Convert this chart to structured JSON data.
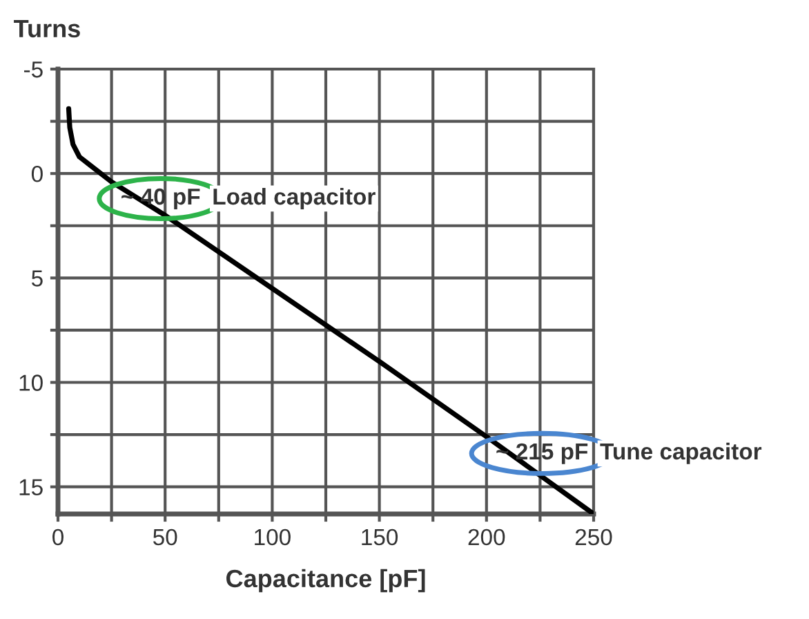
{
  "chart_data": {
    "type": "line",
    "ylabel": "Turns",
    "xlabel": "Capacitance [pF]",
    "x": [
      5,
      5.5,
      7,
      10,
      15,
      25,
      50,
      100,
      150,
      200,
      250
    ],
    "series": [
      {
        "color": "#000000",
        "values": [
          -3.1,
          -2.2,
          -1.4,
          -0.8,
          -0.4,
          0.4,
          2.0,
          5.5,
          9.0,
          12.6,
          16.3
        ]
      }
    ],
    "xlim": [
      0,
      250
    ],
    "ylim": [
      16.3,
      -5
    ],
    "xticks": [
      0,
      {
        "value": 25,
        "label": null
      },
      50,
      {
        "value": 75,
        "label": null
      },
      100,
      {
        "value": 125,
        "label": null
      },
      150,
      {
        "value": 175,
        "label": null
      },
      200,
      {
        "value": 225,
        "label": null
      },
      250
    ],
    "yticks": [
      -5,
      {
        "value": -2.5,
        "label": null
      },
      0,
      {
        "value": 2.5,
        "label": null
      },
      5,
      {
        "value": 7.5,
        "label": null
      },
      10,
      {
        "value": 12.5,
        "label": null
      },
      15
    ],
    "grid": true,
    "marker": "none",
    "line_style": "solid",
    "annotations": [
      {
        "text": "~ 40 pF",
        "x": 40,
        "y": 1.2
      },
      "Load capacitor",
      {
        "text": "~ 215 pF",
        "x": 215,
        "y": 13.4
      },
      "Tune capacitor"
    ]
  }
}
